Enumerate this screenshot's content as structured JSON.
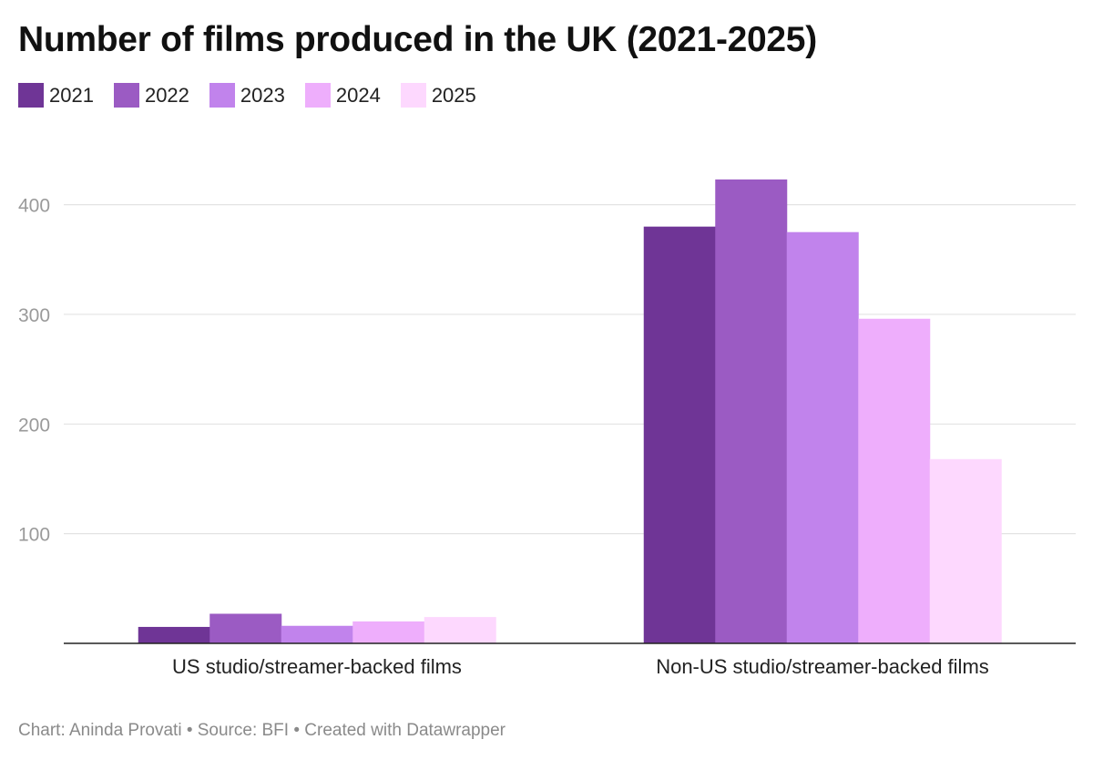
{
  "chart_data": {
    "type": "bar",
    "title": "Number of films produced in the UK (2021-2025)",
    "categories": [
      "US studio/streamer-backed films",
      "Non-US studio/streamer-backed films"
    ],
    "series": [
      {
        "name": "2021",
        "color": "#6f3596",
        "values": [
          15,
          380
        ]
      },
      {
        "name": "2022",
        "color": "#9b5bc3",
        "values": [
          27,
          423
        ]
      },
      {
        "name": "2023",
        "color": "#c183ec",
        "values": [
          16,
          375
        ]
      },
      {
        "name": "2024",
        "color": "#eeaefc",
        "values": [
          20,
          296
        ]
      },
      {
        "name": "2025",
        "color": "#fdd8fe",
        "values": [
          24,
          168
        ]
      }
    ],
    "yticks": [
      100,
      200,
      300,
      400
    ],
    "ylim": [
      0,
      460
    ],
    "grid": true,
    "legend_position": "top-left"
  },
  "footer": {
    "credit": "Chart: Aninda Provati • Source: BFI • Created with Datawrapper"
  }
}
